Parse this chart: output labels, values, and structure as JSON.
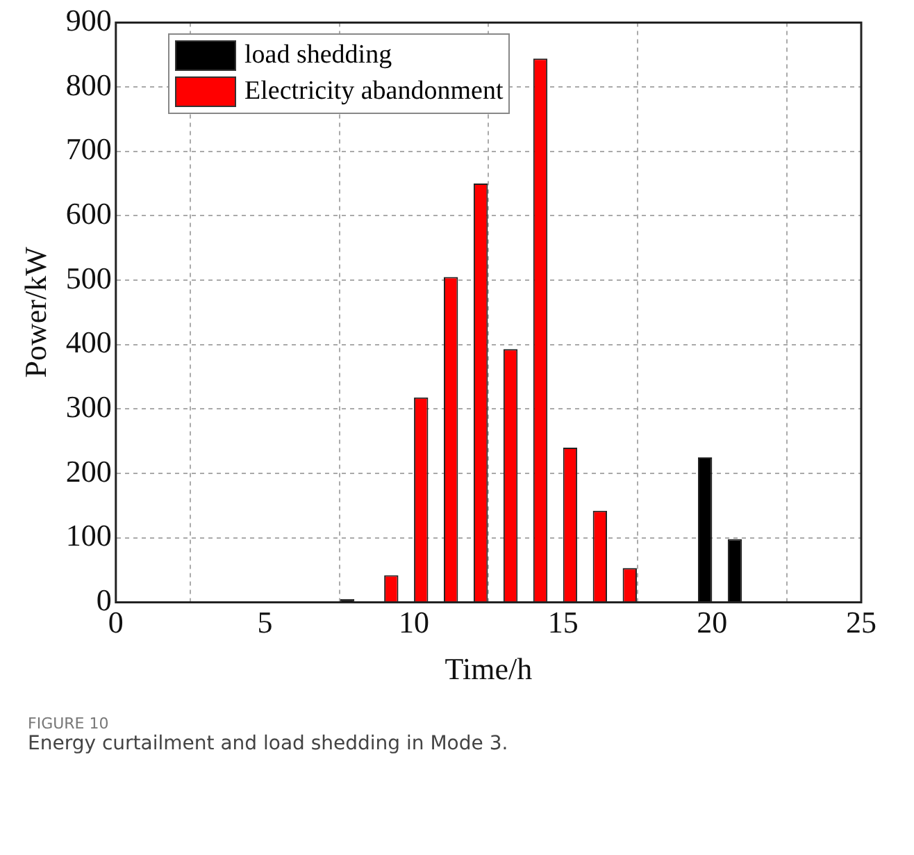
{
  "chart_data": {
    "type": "bar",
    "xlabel": "Time/h",
    "ylabel": "Power/kW",
    "annotations": [
      "FIGURE 10",
      "Energy curtailment and load shedding in Mode 3."
    ],
    "x": [
      8,
      9,
      10,
      11,
      12,
      13,
      14,
      15,
      16,
      17,
      18,
      19,
      20,
      21
    ],
    "series": [
      {
        "name": "load shedding",
        "color": "#000000",
        "values": [
          5,
          null,
          null,
          null,
          null,
          null,
          null,
          null,
          null,
          null,
          null,
          null,
          225,
          98
        ]
      },
      {
        "name": "Electricity abandonment",
        "color": "#ff0000",
        "values": [
          null,
          42,
          318,
          505,
          650,
          393,
          844,
          240,
          142,
          53,
          null,
          null,
          null,
          null
        ]
      }
    ],
    "xlim": [
      0,
      25
    ],
    "xticks": [
      0,
      5,
      10,
      15,
      20,
      25
    ],
    "ylim": [
      0,
      900
    ],
    "yticks": [
      0,
      100,
      200,
      300,
      400,
      500,
      600,
      700,
      800,
      900
    ],
    "grid": true,
    "legend": "top left"
  }
}
